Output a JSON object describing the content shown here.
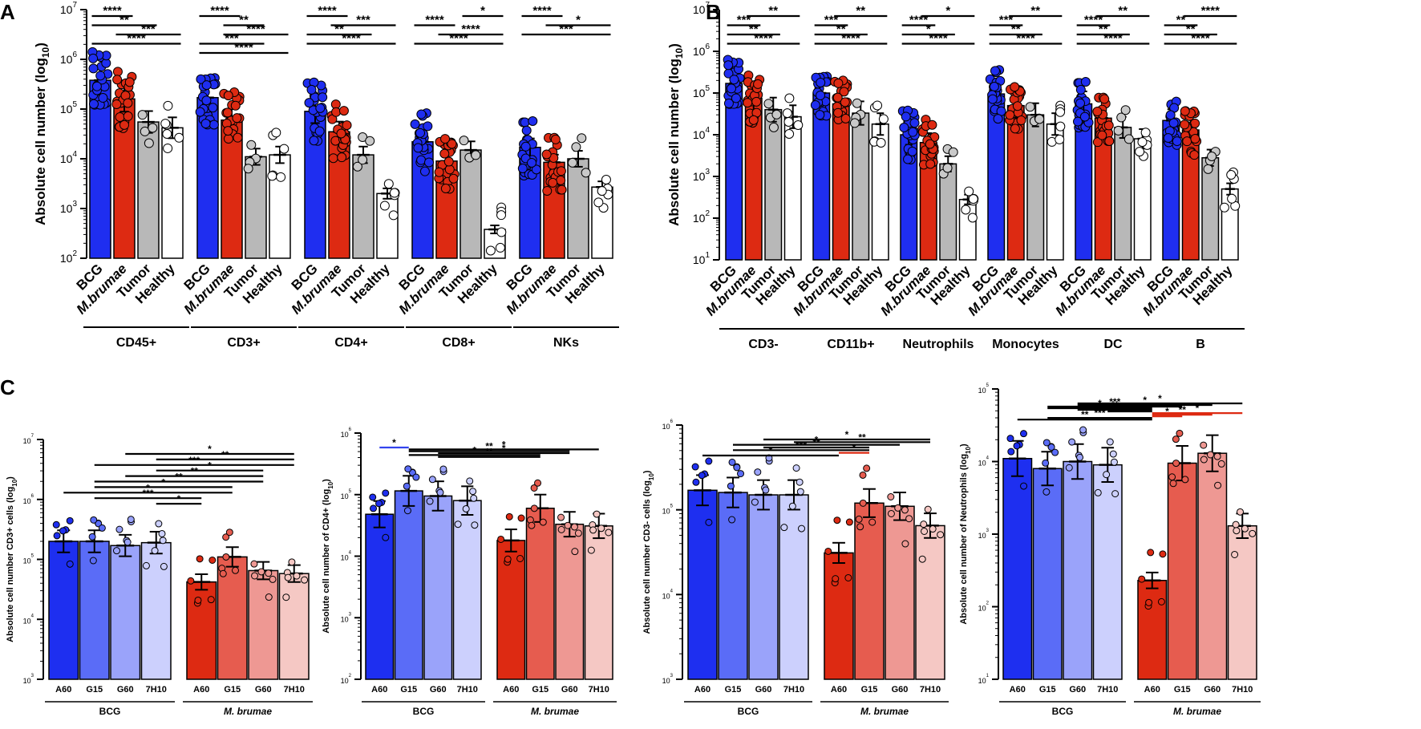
{
  "colors": {
    "BCG": "#1f2ef0",
    "Mbrumae": "#dd2a12",
    "Tumor": "#b8b8b8",
    "Healthy": "#ffffff",
    "bcg_shades": [
      "#1e2ff0",
      "#5a6cf7",
      "#9aa3fa",
      "#ccd0fd"
    ],
    "mb_shades": [
      "#dd2a12",
      "#e65c4f",
      "#ee9893",
      "#f5c8c4"
    ],
    "black": "#000000",
    "blue_sig": "#3344ee",
    "red_sig": "#dd2a12"
  },
  "labels": {
    "panel_a": "A",
    "panel_b": "B",
    "panel_c": "C",
    "cat_bcg": "BCG",
    "cat_mb": "M.brumae",
    "cat_tumor": "Tumor",
    "cat_healthy": "Healthy",
    "group_bcg": "BCG",
    "group_mb": "M. brumae",
    "tick_a60": "A60",
    "tick_g15": "G15",
    "tick_g60": "G60",
    "tick_7h10": "7H10"
  },
  "chart_data": [
    {
      "id": "A",
      "type": "bar",
      "scale": "log",
      "ylabel": "Absolute cell number (log10)",
      "ylim": [
        100,
        10000000
      ],
      "yticks": [
        "10^2",
        "10^3",
        "10^4",
        "10^5",
        "10^6",
        "10^7"
      ],
      "categories": [
        "BCG",
        "M.brumae",
        "Tumor",
        "Healthy"
      ],
      "groups": [
        {
          "name": "CD45+",
          "values": [
            380000,
            160000,
            55000,
            42000
          ],
          "sig": [
            {
              "a": 0,
              "b": 1,
              "label": "****"
            },
            {
              "a": 0,
              "b": 2,
              "label": "**"
            },
            {
              "a": 1,
              "b": 3,
              "label": "***"
            },
            {
              "a": 0,
              "b": 3,
              "label": "****"
            }
          ]
        },
        {
          "name": "CD3+",
          "values": [
            170000,
            60000,
            11000,
            12000
          ],
          "sig": [
            {
              "a": 0,
              "b": 1,
              "label": "****"
            },
            {
              "a": 1,
              "b": 2,
              "label": "**"
            },
            {
              "a": 1,
              "b": 3,
              "label": "****"
            },
            {
              "a": 0,
              "b": 2,
              "label": "***"
            },
            {
              "a": 0,
              "b": 3,
              "label": "****"
            }
          ]
        },
        {
          "name": "CD4+",
          "values": [
            90000,
            35000,
            12000,
            2000
          ],
          "sig": [
            {
              "a": 0,
              "b": 1,
              "label": "****"
            },
            {
              "a": 1,
              "b": 3,
              "label": "***"
            },
            {
              "a": 0,
              "b": 2,
              "label": "**"
            },
            {
              "a": 0,
              "b": 3,
              "label": "****"
            }
          ]
        },
        {
          "name": "CD8+",
          "values": [
            22000,
            9000,
            15000,
            380
          ],
          "sig": [
            {
              "a": 2,
              "b": 3,
              "label": "*"
            },
            {
              "a": 0,
              "b": 1,
              "label": "****"
            },
            {
              "a": 1,
              "b": 3,
              "label": "****"
            },
            {
              "a": 0,
              "b": 3,
              "label": "****"
            }
          ]
        },
        {
          "name": "NKs",
          "values": [
            17000,
            8500,
            10000,
            2700
          ],
          "sig": [
            {
              "a": 0,
              "b": 1,
              "label": "****"
            },
            {
              "a": 1,
              "b": 3,
              "label": "*"
            },
            {
              "a": 0,
              "b": 3,
              "label": "***"
            }
          ]
        }
      ]
    },
    {
      "id": "B",
      "type": "bar",
      "scale": "log",
      "ylabel": "Absolute cell number (log10)",
      "ylim": [
        10,
        10000000
      ],
      "yticks": [
        "10^1",
        "10^2",
        "10^3",
        "10^4",
        "10^5",
        "10^6",
        "10^7"
      ],
      "categories": [
        "BCG",
        "M.brumae",
        "Tumor",
        "Healthy"
      ],
      "groups": [
        {
          "name": "CD3-",
          "values": [
            170000,
            75000,
            40000,
            27000
          ],
          "sig": [
            {
              "a": 1,
              "b": 3,
              "label": "**"
            },
            {
              "a": 0,
              "b": 1,
              "label": "***"
            },
            {
              "a": 0,
              "b": 2,
              "label": "**"
            },
            {
              "a": 0,
              "b": 3,
              "label": "****"
            }
          ]
        },
        {
          "name": "CD11b+",
          "values": [
            100000,
            55000,
            33000,
            18000
          ],
          "sig": [
            {
              "a": 1,
              "b": 3,
              "label": "**"
            },
            {
              "a": 0,
              "b": 1,
              "label": "***"
            },
            {
              "a": 0,
              "b": 2,
              "label": "**"
            },
            {
              "a": 0,
              "b": 3,
              "label": "****"
            }
          ]
        },
        {
          "name": "Neutrophils",
          "values": [
            10000,
            6500,
            2000,
            280
          ],
          "sig": [
            {
              "a": 1,
              "b": 3,
              "label": "*"
            },
            {
              "a": 0,
              "b": 1,
              "label": "****"
            },
            {
              "a": 0,
              "b": 2,
              "label": "*"
            },
            {
              "a": 0,
              "b": 3,
              "label": "****"
            }
          ]
        },
        {
          "name": "Monocytes",
          "values": [
            95000,
            50000,
            30000,
            18000
          ],
          "sig": [
            {
              "a": 1,
              "b": 3,
              "label": "**"
            },
            {
              "a": 0,
              "b": 1,
              "label": "***"
            },
            {
              "a": 0,
              "b": 2,
              "label": "**"
            },
            {
              "a": 0,
              "b": 3,
              "label": "****"
            }
          ]
        },
        {
          "name": "DC",
          "values": [
            55000,
            25000,
            15000,
            8000
          ],
          "sig": [
            {
              "a": 1,
              "b": 3,
              "label": "**"
            },
            {
              "a": 0,
              "b": 1,
              "label": "****"
            },
            {
              "a": 0,
              "b": 2,
              "label": "**"
            },
            {
              "a": 0,
              "b": 3,
              "label": "****"
            }
          ]
        },
        {
          "name": "B",
          "values": [
            22000,
            13000,
            2800,
            500
          ],
          "sig": [
            {
              "a": 1,
              "b": 3,
              "label": "****"
            },
            {
              "a": 0,
              "b": 1,
              "label": "**"
            },
            {
              "a": 0,
              "b": 2,
              "label": "**"
            },
            {
              "a": 0,
              "b": 3,
              "label": "****"
            }
          ]
        }
      ]
    },
    {
      "id": "C1",
      "type": "bar",
      "scale": "log",
      "ylabel": "Absolute cell number CD3+ cells (log10)",
      "ylim": [
        1000,
        10000000
      ],
      "yticks": [
        "10^3",
        "10^4",
        "10^5",
        "10^6",
        "10^7"
      ],
      "categories": [
        "A60",
        "G15",
        "G60",
        "7H10",
        "A60",
        "G15",
        "G60",
        "7H10"
      ],
      "groups_labels": [
        "BCG",
        "M. brumae"
      ],
      "values": [
        200000,
        200000,
        170000,
        190000,
        42000,
        110000,
        65000,
        58000
      ],
      "sig": [
        {
          "from": 2,
          "to": 7,
          "label": "*"
        },
        {
          "from": 3,
          "to": 7,
          "label": "**"
        },
        {
          "from": 1,
          "to": 7,
          "label": "***"
        },
        {
          "from": 3,
          "to": 6,
          "label": "*"
        },
        {
          "from": 2,
          "to": 6,
          "label": "**"
        },
        {
          "from": 1,
          "to": 6,
          "label": "**"
        },
        {
          "from": 1,
          "to": 5,
          "label": "*"
        },
        {
          "from": 0,
          "to": 5,
          "label": "*"
        },
        {
          "from": 1,
          "to": 4,
          "label": "***"
        },
        {
          "from": 3,
          "to": 4,
          "label": "*"
        }
      ]
    },
    {
      "id": "C2",
      "type": "bar",
      "scale": "log",
      "ylabel": "Absolute cell number of CD4+ (log10)",
      "ylim": [
        100,
        1000000
      ],
      "yticks": [
        "10^2",
        "10^3",
        "10^4",
        "10^5",
        "10^6"
      ],
      "categories": [
        "A60",
        "G15",
        "G60",
        "7H10",
        "A60",
        "G15",
        "G60",
        "7H10"
      ],
      "groups_labels": [
        "BCG",
        "M. brumae"
      ],
      "values": [
        48000,
        115000,
        95000,
        80000,
        18000,
        60000,
        33000,
        31000
      ],
      "sig": [
        {
          "from": 0,
          "to": 1,
          "label": "*",
          "color": "blue"
        },
        {
          "from": 1,
          "to": 7,
          "label": "*"
        },
        {
          "from": 1,
          "to": 6,
          "label": "**"
        },
        {
          "from": 2,
          "to": 6,
          "label": "*"
        },
        {
          "from": 1,
          "to": 5,
          "label": "*"
        },
        {
          "from": 2,
          "to": 5,
          "label": "**"
        }
      ]
    },
    {
      "id": "C3",
      "type": "bar",
      "scale": "log",
      "ylabel": "Absolute cell number CD3- cells (log10)",
      "ylim": [
        1000,
        1000000
      ],
      "yticks": [
        "10^3",
        "10^4",
        "10^5",
        "10^6"
      ],
      "categories": [
        "A60",
        "G15",
        "G60",
        "7H10",
        "A60",
        "G15",
        "G60",
        "7H10"
      ],
      "groups_labels": [
        "BCG",
        "M. brumae"
      ],
      "values": [
        170000,
        160000,
        150000,
        150000,
        31000,
        120000,
        110000,
        65000
      ],
      "sig": [
        {
          "from": 2,
          "to": 7,
          "label": "*"
        },
        {
          "from": 3,
          "to": 7,
          "label": "**"
        },
        {
          "from": 1,
          "to": 6,
          "label": "*"
        },
        {
          "from": 2,
          "to": 5,
          "label": "**"
        },
        {
          "from": 1,
          "to": 5,
          "label": "***"
        },
        {
          "from": 4,
          "to": 5,
          "label": "*",
          "color": "red"
        },
        {
          "from": 0,
          "to": 4,
          "label": "*"
        }
      ]
    },
    {
      "id": "C4",
      "type": "bar",
      "scale": "log",
      "ylabel": "Absolute cell number of Neutrophils (log10)",
      "ylim": [
        10,
        100000
      ],
      "yticks": [
        "10^1",
        "10^2",
        "10^3",
        "10^4",
        "10^5"
      ],
      "categories": [
        "A60",
        "G15",
        "G60",
        "7H10",
        "A60",
        "G15",
        "G60",
        "7H10"
      ],
      "groups_labels": [
        "BCG",
        "M. brumae"
      ],
      "values": [
        11000,
        8000,
        10000,
        9000,
        230,
        9500,
        13000,
        1300
      ],
      "sig": [
        {
          "from": 2,
          "to": 7,
          "label": "*"
        },
        {
          "from": 2,
          "to": 6,
          "label": "*"
        },
        {
          "from": 1,
          "to": 5,
          "label": "***"
        },
        {
          "from": 1,
          "to": 4,
          "label": "*"
        },
        {
          "from": 2,
          "to": 4,
          "label": "**"
        },
        {
          "from": 3,
          "to": 4,
          "label": "**"
        },
        {
          "from": 4,
          "to": 7,
          "label": "*",
          "color": "red"
        },
        {
          "from": 4,
          "to": 6,
          "label": "**",
          "color": "red"
        },
        {
          "from": 4,
          "to": 5,
          "label": "*",
          "color": "red"
        },
        {
          "from": 1,
          "to": 4,
          "label": "***"
        },
        {
          "from": 0,
          "to": 4,
          "label": "**"
        }
      ]
    }
  ]
}
